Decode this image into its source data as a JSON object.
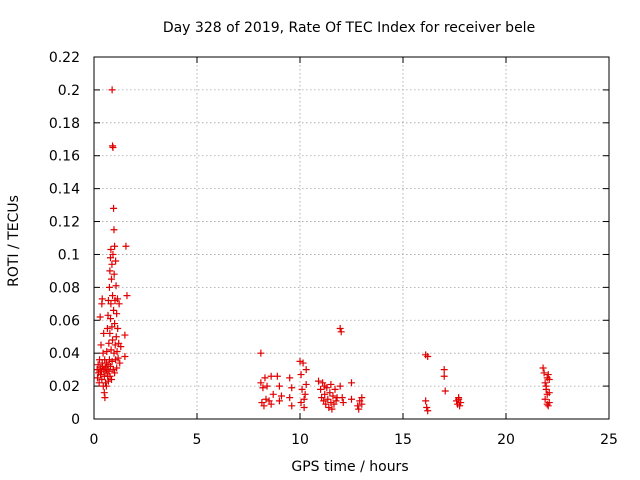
{
  "chart_data": {
    "type": "scatter",
    "title": "Day 328 of 2019, Rate Of TEC Index for receiver bele",
    "xlabel": "GPS time / hours",
    "ylabel": "ROTI / TECUs",
    "xlim": [
      0,
      25
    ],
    "ylim": [
      0,
      0.22
    ],
    "xticks": [
      0,
      5,
      10,
      15,
      20,
      25
    ],
    "yticks": [
      0,
      0.02,
      0.04,
      0.06,
      0.08,
      0.1,
      0.12,
      0.14,
      0.16,
      0.18,
      0.2,
      0.22
    ],
    "xtick_labels": [
      "0",
      "5",
      "10",
      "15",
      "20",
      "25"
    ],
    "ytick_labels": [
      "0",
      "0.02",
      "0.04",
      "0.06",
      "0.08",
      "0.1",
      "0.12",
      "0.14",
      "0.16",
      "0.18",
      "0.2",
      "0.22"
    ],
    "grid": true,
    "marker": "plus",
    "color": "#e00000",
    "series": [
      {
        "points": [
          [
            0.15,
            0.03
          ],
          [
            0.17,
            0.025
          ],
          [
            0.2,
            0.033
          ],
          [
            0.22,
            0.028
          ],
          [
            0.25,
            0.022
          ],
          [
            0.27,
            0.036
          ],
          [
            0.3,
            0.062
          ],
          [
            0.3,
            0.031
          ],
          [
            0.32,
            0.027
          ],
          [
            0.34,
            0.045
          ],
          [
            0.36,
            0.029
          ],
          [
            0.38,
            0.07
          ],
          [
            0.38,
            0.024
          ],
          [
            0.4,
            0.073
          ],
          [
            0.4,
            0.034
          ],
          [
            0.42,
            0.032
          ],
          [
            0.44,
            0.04
          ],
          [
            0.45,
            0.02
          ],
          [
            0.47,
            0.052
          ],
          [
            0.48,
            0.03
          ],
          [
            0.5,
            0.026
          ],
          [
            0.5,
            0.016
          ],
          [
            0.52,
            0.036
          ],
          [
            0.53,
            0.013
          ],
          [
            0.55,
            0.031
          ],
          [
            0.56,
            0.022
          ],
          [
            0.58,
            0.028
          ],
          [
            0.6,
            0.034
          ],
          [
            0.6,
            0.02
          ],
          [
            0.62,
            0.041
          ],
          [
            0.63,
            0.03
          ],
          [
            0.65,
            0.055
          ],
          [
            0.66,
            0.026
          ],
          [
            0.68,
            0.063
          ],
          [
            0.68,
            0.033
          ],
          [
            0.7,
            0.072
          ],
          [
            0.7,
            0.023
          ],
          [
            0.72,
            0.046
          ],
          [
            0.73,
            0.029
          ],
          [
            0.75,
            0.08
          ],
          [
            0.75,
            0.036
          ],
          [
            0.77,
            0.09
          ],
          [
            0.77,
            0.052
          ],
          [
            0.78,
            0.026
          ],
          [
            0.8,
            0.098
          ],
          [
            0.8,
            0.061
          ],
          [
            0.8,
            0.032
          ],
          [
            0.82,
            0.103
          ],
          [
            0.82,
            0.07
          ],
          [
            0.83,
            0.042
          ],
          [
            0.85,
            0.085
          ],
          [
            0.85,
            0.024
          ],
          [
            0.87,
            0.094
          ],
          [
            0.87,
            0.056
          ],
          [
            0.88,
            0.2
          ],
          [
            0.88,
            0.035
          ],
          [
            0.9,
            0.166
          ],
          [
            0.9,
            0.075
          ],
          [
            0.9,
            0.048
          ],
          [
            0.92,
            0.165
          ],
          [
            0.92,
            0.1
          ],
          [
            0.93,
            0.03
          ],
          [
            0.95,
            0.128
          ],
          [
            0.95,
            0.066
          ],
          [
            0.97,
            0.115
          ],
          [
            0.97,
            0.04
          ],
          [
            0.98,
            0.088
          ],
          [
            1.0,
            0.105
          ],
          [
            1.0,
            0.058
          ],
          [
            1.0,
            0.028
          ],
          [
            1.02,
            0.072
          ],
          [
            1.03,
            0.045
          ],
          [
            1.05,
            0.096
          ],
          [
            1.05,
            0.036
          ],
          [
            1.07,
            0.081
          ],
          [
            1.08,
            0.05
          ],
          [
            1.1,
            0.064
          ],
          [
            1.1,
            0.031
          ],
          [
            1.12,
            0.041
          ],
          [
            1.14,
            0.073
          ],
          [
            1.15,
            0.055
          ],
          [
            1.17,
            0.037
          ],
          [
            1.2,
            0.046
          ],
          [
            1.22,
            0.07
          ],
          [
            1.25,
            0.034
          ],
          [
            1.3,
            0.044
          ],
          [
            1.5,
            0.051
          ],
          [
            1.55,
            0.105
          ],
          [
            1.6,
            0.075
          ],
          [
            1.5,
            0.038
          ],
          [
            8.1,
            0.04
          ],
          [
            8.1,
            0.022
          ],
          [
            8.15,
            0.01
          ],
          [
            8.2,
            0.019
          ],
          [
            8.25,
            0.008
          ],
          [
            8.3,
            0.025
          ],
          [
            8.35,
            0.012
          ],
          [
            8.4,
            0.02
          ],
          [
            8.5,
            0.011
          ],
          [
            8.6,
            0.026
          ],
          [
            8.6,
            0.009
          ],
          [
            8.7,
            0.015
          ],
          [
            8.9,
            0.026
          ],
          [
            9.0,
            0.02
          ],
          [
            9.0,
            0.011
          ],
          [
            9.1,
            0.014
          ],
          [
            9.5,
            0.025
          ],
          [
            9.5,
            0.013
          ],
          [
            9.6,
            0.019
          ],
          [
            9.6,
            0.008
          ],
          [
            10.0,
            0.035
          ],
          [
            10.05,
            0.027
          ],
          [
            10.1,
            0.018
          ],
          [
            10.15,
            0.034
          ],
          [
            10.2,
            0.012
          ],
          [
            10.2,
            0.007
          ],
          [
            10.3,
            0.021
          ],
          [
            10.3,
            0.03
          ],
          [
            10.05,
            0.01
          ],
          [
            10.25,
            0.015
          ],
          [
            10.9,
            0.023
          ],
          [
            11.0,
            0.018
          ],
          [
            11.05,
            0.013
          ],
          [
            11.1,
            0.022
          ],
          [
            11.15,
            0.011
          ],
          [
            11.2,
            0.015
          ],
          [
            11.25,
            0.009
          ],
          [
            11.3,
            0.019
          ],
          [
            11.35,
            0.012
          ],
          [
            11.4,
            0.007
          ],
          [
            11.45,
            0.016
          ],
          [
            11.5,
            0.01
          ],
          [
            11.55,
            0.006
          ],
          [
            11.6,
            0.014
          ],
          [
            11.65,
            0.009
          ],
          [
            11.7,
            0.018
          ],
          [
            11.75,
            0.011
          ],
          [
            11.8,
            0.013
          ],
          [
            11.2,
            0.02
          ],
          [
            11.5,
            0.021
          ],
          [
            11.95,
            0.055
          ],
          [
            12.0,
            0.053
          ],
          [
            11.95,
            0.02
          ],
          [
            12.05,
            0.013
          ],
          [
            12.1,
            0.01
          ],
          [
            12.5,
            0.022
          ],
          [
            12.5,
            0.012
          ],
          [
            12.8,
            0.008
          ],
          [
            12.9,
            0.011
          ],
          [
            13.0,
            0.009
          ],
          [
            13.0,
            0.013
          ],
          [
            12.85,
            0.006
          ],
          [
            16.1,
            0.039
          ],
          [
            16.2,
            0.038
          ],
          [
            16.1,
            0.011
          ],
          [
            16.15,
            0.007
          ],
          [
            16.2,
            0.005
          ],
          [
            17.0,
            0.03
          ],
          [
            17.0,
            0.026
          ],
          [
            17.05,
            0.017
          ],
          [
            17.6,
            0.011
          ],
          [
            17.65,
            0.009
          ],
          [
            17.7,
            0.012
          ],
          [
            17.75,
            0.008
          ],
          [
            17.8,
            0.01
          ],
          [
            17.7,
            0.013
          ],
          [
            21.8,
            0.031
          ],
          [
            21.85,
            0.028
          ],
          [
            21.9,
            0.022
          ],
          [
            21.95,
            0.018
          ],
          [
            22.0,
            0.015
          ],
          [
            22.05,
            0.027
          ],
          [
            22.1,
            0.024
          ],
          [
            21.9,
            0.012
          ],
          [
            22.0,
            0.009
          ],
          [
            22.05,
            0.008
          ],
          [
            22.1,
            0.016
          ],
          [
            21.95,
            0.02
          ],
          [
            22.0,
            0.025
          ],
          [
            22.1,
            0.01
          ]
        ]
      }
    ]
  }
}
